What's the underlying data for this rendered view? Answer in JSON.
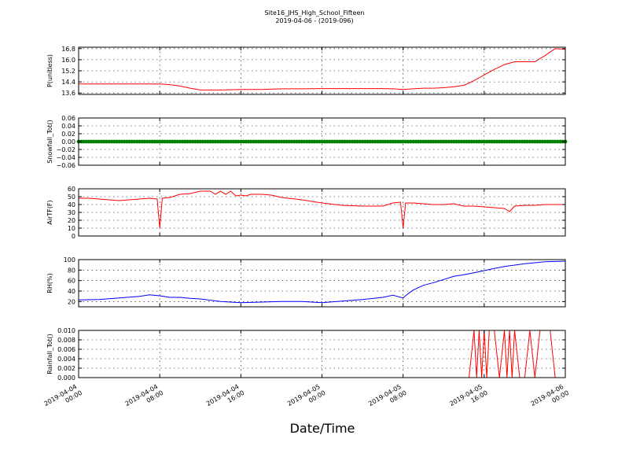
{
  "figure": {
    "title": "Site16_JHS_High_School_Fifteen",
    "subtitle": "2019-04-06 - (2019-096)",
    "xlabel": "Date/Time"
  },
  "chart_data": [
    {
      "type": "line",
      "ylabel": "P(unitless)",
      "ylim": [
        13.5,
        16.9
      ],
      "yticks": [
        "13.6",
        "14.4",
        "15.2",
        "16.0",
        "16.8"
      ],
      "ytick_values": [
        13.6,
        14.4,
        15.2,
        16.0,
        16.8
      ],
      "xlim": [
        "2019-04-04 00:00",
        "2019-04-06 00:00"
      ],
      "grid": true,
      "series": [
        {
          "color": "#ff0000",
          "x": [
            "2019-04-04 00:00",
            "2019-04-04 02:00",
            "2019-04-04 04:00",
            "2019-04-04 06:00",
            "2019-04-04 08:00",
            "2019-04-04 09:00",
            "2019-04-04 10:00",
            "2019-04-04 11:00",
            "2019-04-04 12:00",
            "2019-04-04 14:00",
            "2019-04-04 16:00",
            "2019-04-04 18:00",
            "2019-04-04 20:00",
            "2019-04-04 22:00",
            "2019-04-05 00:00",
            "2019-04-05 02:00",
            "2019-04-05 04:00",
            "2019-04-05 06:00",
            "2019-04-05 07:00",
            "2019-04-05 08:00",
            "2019-04-05 09:00",
            "2019-04-05 10:00",
            "2019-04-05 11:00",
            "2019-04-05 12:00",
            "2019-04-05 13:00",
            "2019-04-05 14:00",
            "2019-04-05 15:00",
            "2019-04-05 16:00",
            "2019-04-05 17:00",
            "2019-04-05 18:00",
            "2019-04-05 19:00",
            "2019-04-05 20:00",
            "2019-04-05 21:00",
            "2019-04-05 22:00",
            "2019-04-05 23:00",
            "2019-04-06 00:00"
          ],
          "values": [
            14.25,
            14.25,
            14.25,
            14.25,
            14.25,
            14.2,
            14.1,
            13.95,
            13.82,
            13.82,
            13.85,
            13.85,
            13.9,
            13.9,
            13.92,
            13.92,
            13.92,
            13.92,
            13.9,
            13.85,
            13.9,
            13.95,
            13.95,
            13.98,
            14.05,
            14.15,
            14.5,
            14.9,
            15.3,
            15.65,
            15.85,
            15.85,
            15.85,
            16.3,
            16.8,
            16.75
          ]
        }
      ]
    },
    {
      "type": "line",
      "ylabel": "Snowfall_Tot()",
      "ylim": [
        -0.06,
        0.06
      ],
      "yticks": [
        "−0.06",
        "−0.04",
        "−0.02",
        "0.00",
        "0.02",
        "0.04",
        "0.06"
      ],
      "ytick_values": [
        -0.06,
        -0.04,
        -0.02,
        0.0,
        0.02,
        0.04,
        0.06
      ],
      "xlim": [
        "2019-04-04 00:00",
        "2019-04-06 00:00"
      ],
      "grid": true,
      "series": [
        {
          "color": "#008000",
          "x": [
            "2019-04-04 00:00",
            "2019-04-06 00:00"
          ],
          "values": [
            0.0,
            0.0
          ],
          "markers": true
        }
      ]
    },
    {
      "type": "line",
      "ylabel": "AirTF(F)",
      "ylim": [
        0,
        60
      ],
      "yticks": [
        "0",
        "10",
        "20",
        "30",
        "40",
        "50",
        "60"
      ],
      "ytick_values": [
        0,
        10,
        20,
        30,
        40,
        50,
        60
      ],
      "xlim": [
        "2019-04-04 00:00",
        "2019-04-06 00:00"
      ],
      "grid": true,
      "series": [
        {
          "color": "#ff0000",
          "x": [
            "2019-04-04 00:00",
            "2019-04-04 01:00",
            "2019-04-04 02:00",
            "2019-04-04 03:00",
            "2019-04-04 04:00",
            "2019-04-04 05:00",
            "2019-04-04 06:00",
            "2019-04-04 07:00",
            "2019-04-04 07:45",
            "2019-04-04 08:00",
            "2019-04-04 08:15",
            "2019-04-04 09:00",
            "2019-04-04 10:00",
            "2019-04-04 11:00",
            "2019-04-04 12:00",
            "2019-04-04 13:00",
            "2019-04-04 13:30",
            "2019-04-04 14:00",
            "2019-04-04 14:30",
            "2019-04-04 15:00",
            "2019-04-04 15:30",
            "2019-04-04 16:00",
            "2019-04-04 16:30",
            "2019-04-04 17:00",
            "2019-04-04 18:00",
            "2019-04-04 19:00",
            "2019-04-04 20:00",
            "2019-04-04 22:00",
            "2019-04-05 00:00",
            "2019-04-05 02:00",
            "2019-04-05 04:00",
            "2019-04-05 06:00",
            "2019-04-05 07:00",
            "2019-04-05 07:45",
            "2019-04-05 08:00",
            "2019-04-05 08:15",
            "2019-04-05 09:00",
            "2019-04-05 10:00",
            "2019-04-05 11:00",
            "2019-04-05 12:00",
            "2019-04-05 13:00",
            "2019-04-05 14:00",
            "2019-04-05 15:00",
            "2019-04-05 16:00",
            "2019-04-05 17:00",
            "2019-04-05 18:00",
            "2019-04-05 18:30",
            "2019-04-05 19:00",
            "2019-04-05 20:00",
            "2019-04-05 21:00",
            "2019-04-05 22:00",
            "2019-04-06 00:00"
          ],
          "values": [
            48,
            48,
            47,
            46,
            45,
            46,
            47,
            48,
            47,
            10,
            48,
            49,
            53,
            54,
            57,
            57,
            53,
            57,
            53,
            57,
            51,
            52,
            51,
            53,
            53,
            52,
            49,
            46,
            42,
            39,
            38,
            38,
            42,
            43,
            10,
            42,
            42,
            41,
            40,
            40,
            41,
            38,
            38,
            37,
            36,
            35,
            31,
            38,
            39,
            39,
            40,
            40
          ]
        }
      ]
    },
    {
      "type": "line",
      "ylabel": "RH(%)",
      "ylim": [
        10,
        100
      ],
      "yticks": [
        "20",
        "40",
        "60",
        "80",
        "100"
      ],
      "ytick_values": [
        20,
        40,
        60,
        80,
        100
      ],
      "xlim": [
        "2019-04-04 00:00",
        "2019-04-06 00:00"
      ],
      "grid": true,
      "series": [
        {
          "color": "#0000ff",
          "x": [
            "2019-04-04 00:00",
            "2019-04-04 02:00",
            "2019-04-04 04:00",
            "2019-04-04 06:00",
            "2019-04-04 07:00",
            "2019-04-04 08:00",
            "2019-04-04 09:00",
            "2019-04-04 10:00",
            "2019-04-04 11:00",
            "2019-04-04 12:00",
            "2019-04-04 14:00",
            "2019-04-04 16:00",
            "2019-04-04 18:00",
            "2019-04-04 20:00",
            "2019-04-04 22:00",
            "2019-04-05 00:00",
            "2019-04-05 02:00",
            "2019-04-05 04:00",
            "2019-04-05 06:00",
            "2019-04-05 07:00",
            "2019-04-05 08:00",
            "2019-04-05 08:30",
            "2019-04-05 09:00",
            "2019-04-05 10:00",
            "2019-04-05 11:00",
            "2019-04-05 12:00",
            "2019-04-05 13:00",
            "2019-04-05 14:00",
            "2019-04-05 15:00",
            "2019-04-05 16:00",
            "2019-04-05 17:00",
            "2019-04-05 18:00",
            "2019-04-05 20:00",
            "2019-04-05 22:00",
            "2019-04-06 00:00"
          ],
          "values": [
            23,
            24,
            27,
            30,
            33,
            31,
            28,
            28,
            26,
            25,
            20,
            18,
            19,
            20,
            20,
            18,
            21,
            24,
            28,
            32,
            27,
            35,
            42,
            51,
            56,
            62,
            68,
            71,
            75,
            79,
            83,
            87,
            92,
            96,
            97
          ]
        }
      ]
    },
    {
      "type": "line",
      "ylabel": "Rainfall_Tot()",
      "ylim": [
        0.0,
        0.01
      ],
      "yticks": [
        "0.000",
        "0.002",
        "0.004",
        "0.006",
        "0.008",
        "0.010"
      ],
      "ytick_values": [
        0.0,
        0.002,
        0.004,
        0.006,
        0.008,
        0.01
      ],
      "xlim": [
        "2019-04-04 00:00",
        "2019-04-06 00:00"
      ],
      "grid": true,
      "series": [
        {
          "color": "#ff0000",
          "x": [
            "2019-04-04 00:00",
            "2019-04-05 14:30",
            "2019-04-05 15:00",
            "2019-04-05 15:15",
            "2019-04-05 15:30",
            "2019-04-05 15:45",
            "2019-04-05 16:00",
            "2019-04-05 16:15",
            "2019-04-05 16:30",
            "2019-04-05 16:45",
            "2019-04-05 17:00",
            "2019-04-05 17:30",
            "2019-04-05 18:00",
            "2019-04-05 18:15",
            "2019-04-05 18:30",
            "2019-04-05 18:45",
            "2019-04-05 19:00",
            "2019-04-05 19:30",
            "2019-04-05 20:00",
            "2019-04-05 20:30",
            "2019-04-05 21:00",
            "2019-04-05 21:30",
            "2019-04-05 22:00",
            "2019-04-05 22:30",
            "2019-04-05 23:00",
            "2019-04-06 00:00"
          ],
          "values": [
            0,
            0,
            0.01,
            0,
            0.01,
            0,
            0.01,
            0,
            0.01,
            0.01,
            0.01,
            0,
            0.01,
            0,
            0.01,
            0,
            0.01,
            0,
            0,
            0.01,
            0,
            0.01,
            0.01,
            0.01,
            0,
            0
          ]
        }
      ]
    }
  ],
  "xaxis": {
    "tick_labels": [
      [
        "2019-04-04",
        "00:00"
      ],
      [
        "2019-04-04",
        "08:00"
      ],
      [
        "2019-04-04",
        "16:00"
      ],
      [
        "2019-04-05",
        "00:00"
      ],
      [
        "2019-04-05",
        "08:00"
      ],
      [
        "2019-04-05",
        "16:00"
      ],
      [
        "2019-04-06",
        "00:00"
      ]
    ],
    "tick_values": [
      "2019-04-04 00:00",
      "2019-04-04 08:00",
      "2019-04-04 16:00",
      "2019-04-05 00:00",
      "2019-04-05 08:00",
      "2019-04-05 16:00",
      "2019-04-06 00:00"
    ]
  }
}
